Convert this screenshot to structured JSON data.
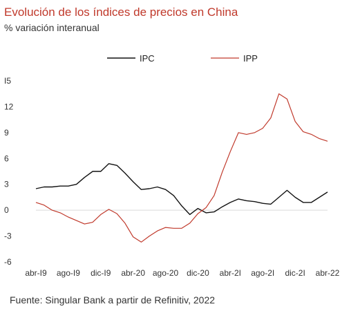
{
  "title": "Evolución de los índices de precios en China",
  "subtitle": "% variación interanual",
  "source": "Fuente: Singular Bank a partir de Refinitiv, 2022",
  "chart_data": {
    "type": "line",
    "title": "Evolución de los índices de precios en China",
    "subtitle": "% variación interanual",
    "ylim": [
      -6,
      15
    ],
    "yticks": [
      -6,
      -3,
      0,
      3,
      6,
      9,
      12,
      15
    ],
    "ytick_labels": [
      "-6",
      "-3",
      "0",
      "3",
      "6",
      "9",
      "12",
      "I5"
    ],
    "grid": false,
    "legend_position": "top",
    "x": [
      "abr-19",
      "may-19",
      "jun-19",
      "jul-19",
      "ago-19",
      "sep-19",
      "oct-19",
      "nov-19",
      "dic-19",
      "ene-20",
      "feb-20",
      "mar-20",
      "abr-20",
      "may-20",
      "jun-20",
      "jul-20",
      "ago-20",
      "sep-20",
      "oct-20",
      "nov-20",
      "dic-20",
      "ene-21",
      "feb-21",
      "mar-21",
      "abr-21",
      "may-21",
      "jun-21",
      "jul-21",
      "ago-21",
      "sep-21",
      "oct-21",
      "nov-21",
      "dic-21",
      "ene-22",
      "feb-22",
      "mar-22",
      "abr-22"
    ],
    "xtick_labels": [
      "abr-I9",
      "ago-I9",
      "dic-I9",
      "abr-20",
      "ago-20",
      "dic-20",
      "abr-2I",
      "ago-2I",
      "dic-2I",
      "abr-22"
    ],
    "xtick_index": [
      0,
      4,
      8,
      12,
      16,
      20,
      24,
      28,
      32,
      36
    ],
    "series": [
      {
        "name": "IPC",
        "color": "#111111",
        "values": [
          2.5,
          2.7,
          2.7,
          2.8,
          2.8,
          3.0,
          3.8,
          4.5,
          4.5,
          5.4,
          5.2,
          4.3,
          3.3,
          2.4,
          2.5,
          2.7,
          2.4,
          1.7,
          0.5,
          -0.5,
          0.2,
          -0.3,
          -0.2,
          0.4,
          0.9,
          1.3,
          1.1,
          1.0,
          0.8,
          0.7,
          1.5,
          2.3,
          1.5,
          0.9,
          0.9,
          1.5,
          2.1
        ]
      },
      {
        "name": "IPP",
        "color": "#c0392b",
        "values": [
          0.9,
          0.6,
          0.0,
          -0.3,
          -0.8,
          -1.2,
          -1.6,
          -1.4,
          -0.5,
          0.1,
          -0.4,
          -1.5,
          -3.1,
          -3.7,
          -3.0,
          -2.4,
          -2.0,
          -2.1,
          -2.1,
          -1.5,
          -0.4,
          0.3,
          1.7,
          4.4,
          6.8,
          9.0,
          8.8,
          9.0,
          9.5,
          10.7,
          13.5,
          12.9,
          10.3,
          9.1,
          8.8,
          8.3,
          8.0
        ]
      }
    ]
  }
}
